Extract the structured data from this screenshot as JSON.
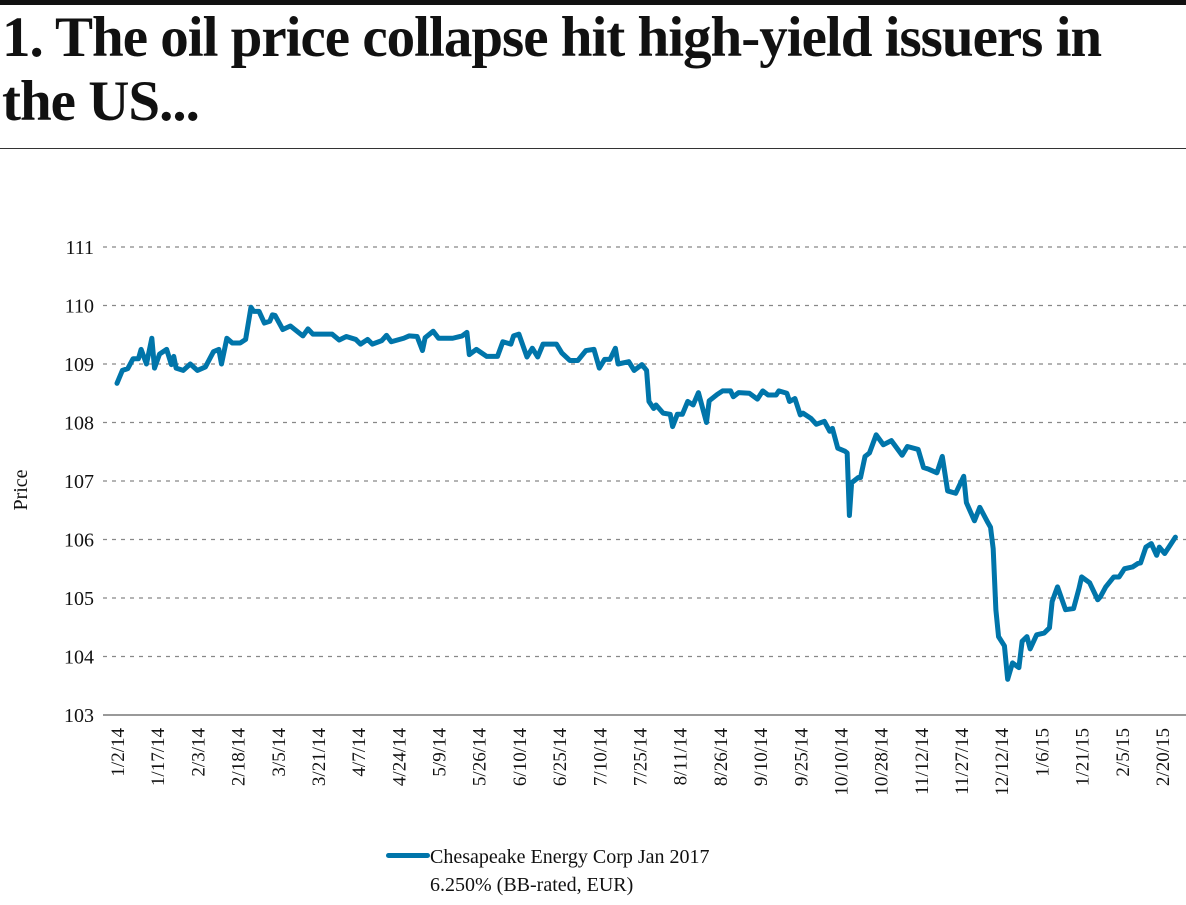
{
  "title": "1. The oil price collapse hit high-yield issuers in the US...",
  "chart_data": {
    "type": "line",
    "title": "1. The oil price collapse hit high-yield issuers in the US...",
    "xlabel": "",
    "ylabel": "Price",
    "ylim": [
      103,
      111
    ],
    "yticks": [
      "103",
      "104",
      "105",
      "106",
      "107",
      "108",
      "109",
      "110",
      "111"
    ],
    "xticks": [
      "1/2/14",
      "1/17/14",
      "2/3/14",
      "2/18/14",
      "3/5/14",
      "3/21/14",
      "4/7/14",
      "4/24/14",
      "5/9/14",
      "5/26/14",
      "6/10/14",
      "6/25/14",
      "7/10/14",
      "7/25/14",
      "8/11/14",
      "8/26/14",
      "9/10/14",
      "9/25/14",
      "10/10/14",
      "10/28/14",
      "11/12/14",
      "11/27/14",
      "12/12/14",
      "1/6/15",
      "1/21/15",
      "2/5/15",
      "2/20/15"
    ],
    "grid": "horizontal dashed",
    "legend_position": "bottom",
    "series": [
      {
        "name_line1": "Chesapeake Energy Corp Jan 2017",
        "name_line2": "6.250% (BB-rated, EUR)",
        "color": "#0075aa",
        "points": [
          [
            "2014-01-02",
            108.67
          ],
          [
            "2014-01-04",
            108.89
          ],
          [
            "2014-01-06",
            108.92
          ],
          [
            "2014-01-08",
            109.09
          ],
          [
            "2014-01-10",
            109.09
          ],
          [
            "2014-01-11",
            109.25
          ],
          [
            "2014-01-13",
            109.0
          ],
          [
            "2014-01-15",
            109.44
          ],
          [
            "2014-01-16",
            108.93
          ],
          [
            "2014-01-18",
            109.17
          ],
          [
            "2014-01-21",
            109.25
          ],
          [
            "2014-01-23",
            108.99
          ],
          [
            "2014-01-24",
            109.13
          ],
          [
            "2014-01-25",
            108.93
          ],
          [
            "2014-01-28",
            108.89
          ],
          [
            "2014-01-31",
            109.0
          ],
          [
            "2014-02-03",
            108.89
          ],
          [
            "2014-02-06",
            108.95
          ],
          [
            "2014-02-09",
            109.21
          ],
          [
            "2014-02-11",
            109.25
          ],
          [
            "2014-02-12",
            109.0
          ],
          [
            "2014-02-14",
            109.44
          ],
          [
            "2014-02-16",
            109.36
          ],
          [
            "2014-02-19",
            109.36
          ],
          [
            "2014-02-21",
            109.42
          ],
          [
            "2014-02-23",
            109.97
          ],
          [
            "2014-02-24",
            109.9
          ],
          [
            "2014-02-26",
            109.9
          ],
          [
            "2014-02-28",
            109.7
          ],
          [
            "2014-03-02",
            109.73
          ],
          [
            "2014-03-03",
            109.84
          ],
          [
            "2014-03-04",
            109.83
          ],
          [
            "2014-03-07",
            109.59
          ],
          [
            "2014-03-10",
            109.65
          ],
          [
            "2014-03-15",
            109.48
          ],
          [
            "2014-03-17",
            109.6
          ],
          [
            "2014-03-19",
            109.51
          ],
          [
            "2014-03-27",
            109.51
          ],
          [
            "2014-03-30",
            109.41
          ],
          [
            "2014-04-02",
            109.47
          ],
          [
            "2014-04-06",
            109.42
          ],
          [
            "2014-04-08",
            109.34
          ],
          [
            "2014-04-11",
            109.42
          ],
          [
            "2014-04-13",
            109.34
          ],
          [
            "2014-04-17",
            109.4
          ],
          [
            "2014-04-19",
            109.49
          ],
          [
            "2014-04-21",
            109.38
          ],
          [
            "2014-04-26",
            109.44
          ],
          [
            "2014-04-28",
            109.48
          ],
          [
            "2014-05-01",
            109.47
          ],
          [
            "2014-05-03",
            109.23
          ],
          [
            "2014-05-04",
            109.45
          ],
          [
            "2014-05-07",
            109.56
          ],
          [
            "2014-05-09",
            109.44
          ],
          [
            "2014-05-15",
            109.44
          ],
          [
            "2014-05-19",
            109.48
          ],
          [
            "2014-05-21",
            109.54
          ],
          [
            "2014-05-22",
            109.16
          ],
          [
            "2014-05-25",
            109.25
          ],
          [
            "2014-05-29",
            109.13
          ],
          [
            "2014-06-02",
            109.13
          ],
          [
            "2014-06-04",
            109.38
          ],
          [
            "2014-06-07",
            109.34
          ],
          [
            "2014-06-08",
            109.48
          ],
          [
            "2014-06-10",
            109.51
          ],
          [
            "2014-06-13",
            109.12
          ],
          [
            "2014-06-15",
            109.27
          ],
          [
            "2014-06-17",
            109.12
          ],
          [
            "2014-06-19",
            109.34
          ],
          [
            "2014-06-24",
            109.34
          ],
          [
            "2014-06-26",
            109.19
          ],
          [
            "2014-06-29",
            109.06
          ],
          [
            "2014-07-02",
            109.06
          ],
          [
            "2014-07-05",
            109.23
          ],
          [
            "2014-07-08",
            109.25
          ],
          [
            "2014-07-10",
            108.93
          ],
          [
            "2014-07-12",
            109.08
          ],
          [
            "2014-07-14",
            109.08
          ],
          [
            "2014-07-16",
            109.27
          ],
          [
            "2014-07-17",
            109.0
          ],
          [
            "2014-07-21",
            109.04
          ],
          [
            "2014-07-23",
            108.89
          ],
          [
            "2014-07-26",
            108.99
          ],
          [
            "2014-07-28",
            108.89
          ],
          [
            "2014-07-29",
            108.36
          ],
          [
            "2014-07-31",
            108.24
          ],
          [
            "2014-08-01",
            108.3
          ],
          [
            "2014-08-04",
            108.16
          ],
          [
            "2014-08-07",
            108.14
          ],
          [
            "2014-08-08",
            107.93
          ],
          [
            "2014-08-10",
            108.14
          ],
          [
            "2014-08-12",
            108.14
          ],
          [
            "2014-08-14",
            108.36
          ],
          [
            "2014-08-16",
            108.3
          ],
          [
            "2014-08-18",
            108.51
          ],
          [
            "2014-08-21",
            108.0
          ],
          [
            "2014-08-22",
            108.37
          ],
          [
            "2014-08-25",
            108.48
          ],
          [
            "2014-08-27",
            108.54
          ],
          [
            "2014-08-30",
            108.54
          ],
          [
            "2014-08-31",
            108.44
          ],
          [
            "2014-09-02",
            108.51
          ],
          [
            "2014-09-06",
            108.5
          ],
          [
            "2014-09-09",
            108.4
          ],
          [
            "2014-09-11",
            108.54
          ],
          [
            "2014-09-13",
            108.47
          ],
          [
            "2014-09-16",
            108.47
          ],
          [
            "2014-09-17",
            108.54
          ],
          [
            "2014-09-20",
            108.5
          ],
          [
            "2014-09-21",
            108.36
          ],
          [
            "2014-09-23",
            108.41
          ],
          [
            "2014-09-25",
            108.13
          ],
          [
            "2014-09-26",
            108.16
          ],
          [
            "2014-09-29",
            108.07
          ],
          [
            "2014-10-01",
            107.97
          ],
          [
            "2014-10-04",
            108.02
          ],
          [
            "2014-10-06",
            107.85
          ],
          [
            "2014-10-07",
            107.9
          ],
          [
            "2014-10-09",
            107.56
          ],
          [
            "2014-10-12",
            107.51
          ],
          [
            "2014-10-13",
            107.48
          ],
          [
            "2014-10-14",
            106.41
          ],
          [
            "2014-10-15",
            106.97
          ],
          [
            "2014-10-18",
            107.06
          ],
          [
            "2014-10-19",
            107.06
          ],
          [
            "2014-10-21",
            107.42
          ],
          [
            "2014-10-23",
            107.48
          ],
          [
            "2014-10-26",
            107.79
          ],
          [
            "2014-10-29",
            107.62
          ],
          [
            "2014-11-01",
            107.69
          ],
          [
            "2014-11-05",
            107.44
          ],
          [
            "2014-11-07",
            107.59
          ],
          [
            "2014-11-11",
            107.54
          ],
          [
            "2014-11-13",
            107.23
          ],
          [
            "2014-11-15",
            107.2
          ],
          [
            "2014-11-18",
            107.14
          ],
          [
            "2014-11-20",
            107.42
          ],
          [
            "2014-11-22",
            106.83
          ],
          [
            "2014-11-25",
            106.79
          ],
          [
            "2014-11-28",
            107.08
          ],
          [
            "2014-11-29",
            106.63
          ],
          [
            "2014-12-02",
            106.32
          ],
          [
            "2014-12-04",
            106.55
          ],
          [
            "2014-12-07",
            106.29
          ],
          [
            "2014-12-08",
            106.21
          ],
          [
            "2014-12-09",
            105.84
          ],
          [
            "2014-12-10",
            104.8
          ],
          [
            "2014-12-11",
            104.34
          ],
          [
            "2014-12-14",
            104.18
          ],
          [
            "2014-12-16",
            103.61
          ],
          [
            "2014-12-19",
            103.89
          ],
          [
            "2014-12-23",
            103.81
          ],
          [
            "2014-12-25",
            104.26
          ],
          [
            "2014-12-28",
            104.34
          ],
          [
            "2014-12-30",
            104.13
          ],
          [
            "2015-01-03",
            104.37
          ],
          [
            "2015-01-07",
            104.4
          ],
          [
            "2015-01-09",
            104.49
          ],
          [
            "2015-01-10",
            104.94
          ],
          [
            "2015-01-12",
            105.19
          ],
          [
            "2015-01-15",
            104.8
          ],
          [
            "2015-01-18",
            104.82
          ],
          [
            "2015-01-20",
            105.16
          ],
          [
            "2015-01-21",
            105.36
          ],
          [
            "2015-01-24",
            105.26
          ],
          [
            "2015-01-27",
            104.97
          ],
          [
            "2015-01-28",
            105.02
          ],
          [
            "2015-01-30",
            105.19
          ],
          [
            "2015-02-02",
            105.36
          ],
          [
            "2015-02-04",
            105.36
          ],
          [
            "2015-02-06",
            105.5
          ],
          [
            "2015-02-09",
            105.53
          ],
          [
            "2015-02-11",
            105.59
          ],
          [
            "2015-02-12",
            105.6
          ],
          [
            "2015-02-14",
            105.87
          ],
          [
            "2015-02-16",
            105.93
          ],
          [
            "2015-02-18",
            105.73
          ],
          [
            "2015-02-19",
            105.87
          ],
          [
            "2015-02-21",
            105.76
          ],
          [
            "2015-02-23",
            105.9
          ],
          [
            "2015-02-25",
            106.04
          ]
        ]
      }
    ]
  }
}
